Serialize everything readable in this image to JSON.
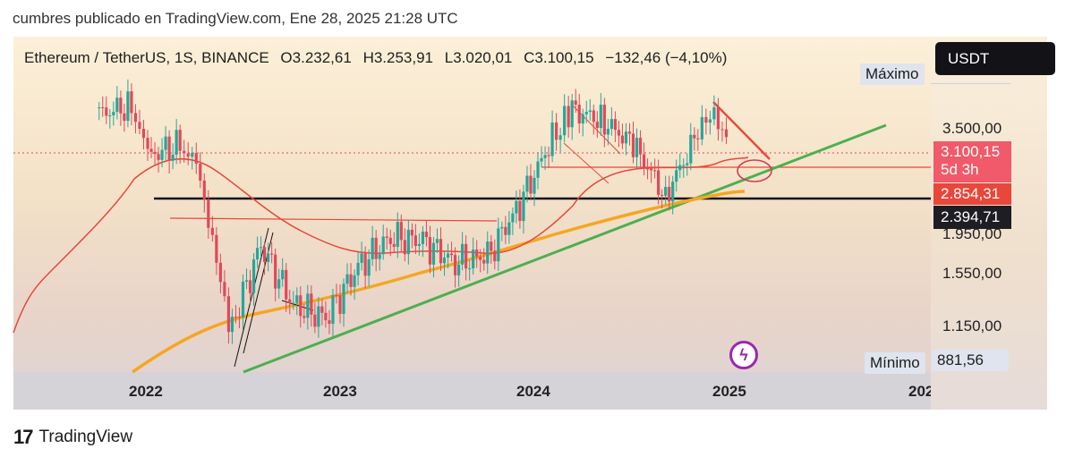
{
  "caption": "cumbres publicado en TradingView.com, Ene 28, 2025 21:28 UTC",
  "header": {
    "symbol": "Ethereum / TetherUS, 1S, BINANCE",
    "open": "O3.232,61",
    "high": "H3.253,91",
    "low": "L3.020,01",
    "close": "C3.100,15",
    "change": "−132,46 (−4,10%)"
  },
  "currency_button": "USDT",
  "labels": {
    "max": "Máximo",
    "min": "Mínimo",
    "min_value": "881,56"
  },
  "price_tags": {
    "current": "3.100,15",
    "countdown": "5d 3h",
    "ma_red": "2.854,31",
    "support": "2.394,71"
  },
  "colors": {
    "up": "#26a69a",
    "down": "#e0495a",
    "ma_red": "#e8473a",
    "ma_orange": "#f5a623",
    "trend_green": "#4caf50",
    "support": "#111111",
    "tag_red": "#f05a6a",
    "tag_dark": "#1d1d23"
  },
  "footer": {
    "brand": "TradingView",
    "logo_icon": "tradingview-logo-icon"
  },
  "icons": {
    "lightning": "lightning-icon"
  },
  "chart_data": {
    "type": "candlestick",
    "interval": "1S",
    "x_ticks": [
      "2022",
      "2023",
      "2024",
      "2025",
      "202"
    ],
    "y_ticks": [
      "3.500,00",
      "1.950,00",
      "1.550,00",
      "1.150,00"
    ],
    "ylim": [
      881.56,
      4100
    ],
    "candles_approx": [
      {
        "date": "2021-10",
        "close": 3800
      },
      {
        "date": "2021-12",
        "close": 4000
      },
      {
        "date": "2022-01",
        "close": 3000
      },
      {
        "date": "2022-03",
        "close": 3200
      },
      {
        "date": "2022-04",
        "close": 2800
      },
      {
        "date": "2022-05",
        "close": 1950
      },
      {
        "date": "2022-06",
        "close": 1100
      },
      {
        "date": "2022-08",
        "close": 1800
      },
      {
        "date": "2022-10",
        "close": 1300
      },
      {
        "date": "2022-12",
        "close": 1200
      },
      {
        "date": "2023-02",
        "close": 1600
      },
      {
        "date": "2023-04",
        "close": 1900
      },
      {
        "date": "2023-06",
        "close": 1850
      },
      {
        "date": "2023-08",
        "close": 1650
      },
      {
        "date": "2023-10",
        "close": 1700
      },
      {
        "date": "2023-12",
        "close": 2300
      },
      {
        "date": "2024-02",
        "close": 3300
      },
      {
        "date": "2024-03",
        "close": 3900
      },
      {
        "date": "2024-05",
        "close": 3700
      },
      {
        "date": "2024-07",
        "close": 3200
      },
      {
        "date": "2024-09",
        "close": 2400
      },
      {
        "date": "2024-11",
        "close": 3400
      },
      {
        "date": "2024-12",
        "close": 3900
      },
      {
        "date": "2025-01",
        "close": 3100
      }
    ],
    "lines": {
      "support_level": 2394.71,
      "ma_red_last": 2854.31,
      "current_price": 3100.15
    }
  }
}
